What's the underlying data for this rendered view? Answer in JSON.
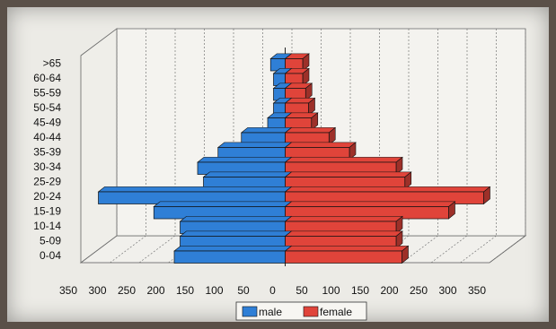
{
  "chart_data": {
    "type": "bar",
    "orientation": "horizontal",
    "style": "population pyramid, 3D bars",
    "categories": [
      "0-04",
      "5-09",
      "10-14",
      "15-19",
      "20-24",
      "25-29",
      "30-34",
      "35-39",
      "40-44",
      "45-49",
      "50-54",
      "55-59",
      "60-64",
      ">65"
    ],
    "series": [
      {
        "name": "male",
        "values": [
          190,
          180,
          180,
          225,
          320,
          140,
          150,
          115,
          75,
          30,
          20,
          20,
          20,
          25
        ],
        "color": "#2f7fd6"
      },
      {
        "name": "female",
        "values": [
          200,
          190,
          190,
          280,
          340,
          205,
          190,
          110,
          75,
          45,
          40,
          35,
          30,
          30
        ],
        "color": "#e0443a"
      }
    ],
    "x_tick_labels": [
      "350",
      "300",
      "250",
      "200",
      "150",
      "100",
      "50",
      "0",
      "50",
      "100",
      "150",
      "200",
      "250",
      "300",
      "350"
    ],
    "xlim": [
      -350,
      350
    ],
    "title": "",
    "xlabel": "",
    "ylabel": "",
    "grid": "vertical dashed",
    "legend": {
      "position": "bottom",
      "entries": [
        "male",
        "female"
      ]
    }
  }
}
